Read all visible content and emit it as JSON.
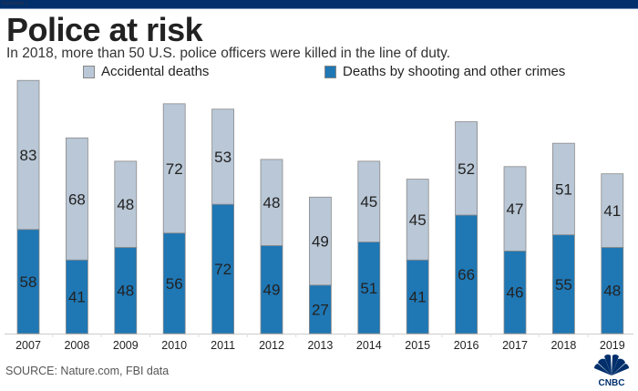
{
  "window": {
    "title": "Dashboard 1"
  },
  "title": "Police at risk",
  "subtitle": "In 2018, more than 50 U.S. police officers were killed in the line of duty.",
  "source": "SOURCE: Nature.com, FBI data",
  "logo": "CNBC",
  "chart_data": {
    "type": "bar",
    "stacked": true,
    "categories": [
      "2007",
      "2008",
      "2009",
      "2010",
      "2011",
      "2012",
      "2013",
      "2014",
      "2015",
      "2016",
      "2017",
      "2018",
      "2019"
    ],
    "series": [
      {
        "name": "Deaths by shooting and other crimes",
        "color": "#1f77b4",
        "values": [
          58,
          41,
          48,
          56,
          72,
          49,
          27,
          51,
          41,
          66,
          46,
          55,
          48
        ]
      },
      {
        "name": "Accidental deaths",
        "color": "#b9c7d6",
        "values": [
          83,
          68,
          48,
          72,
          53,
          48,
          49,
          45,
          45,
          52,
          47,
          51,
          41
        ]
      }
    ],
    "legend": [
      {
        "label": "Accidental deaths",
        "color": "#b9c7d6"
      },
      {
        "label": "Deaths by shooting and other crimes",
        "color": "#1f77b4"
      }
    ],
    "legend_placement": "top",
    "grid": false,
    "ylim": [
      0,
      145
    ]
  }
}
